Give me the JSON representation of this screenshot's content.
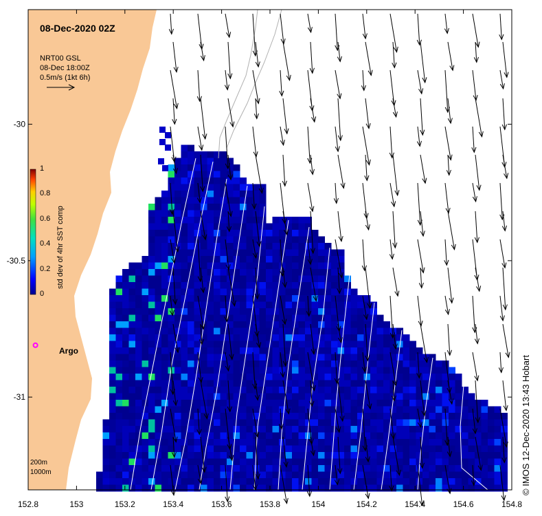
{
  "map": {
    "title": "08-Dec-2020 02Z",
    "lon_range": [
      152.8,
      154.8
    ],
    "lat_range": [
      -31.34,
      -29.58
    ],
    "x_ticks": [
      "152.8",
      "153",
      "153.2",
      "153.4",
      "153.6",
      "153.8",
      "154",
      "154.2",
      "154.4",
      "154.6",
      "154.8"
    ],
    "x_tick_values": [
      152.8,
      153.0,
      153.2,
      153.4,
      153.6,
      153.8,
      154.0,
      154.2,
      154.4,
      154.6,
      154.8
    ],
    "y_ticks": [
      "-30",
      "-30.5",
      "-31"
    ],
    "y_tick_values": [
      -30.0,
      -30.5,
      -31.0
    ]
  },
  "current_legend": {
    "line1": "NRT00 GSL",
    "line2": "08-Dec 18:00Z",
    "line3": "0.5m/s (1kt 6h)"
  },
  "colorbar": {
    "title": "std dev of 4hr SST comp",
    "ticks": [
      "1",
      "0.8",
      "0.6",
      "0.4",
      "0.2",
      "0"
    ],
    "range": [
      0,
      1
    ]
  },
  "argo": {
    "label": "Argo",
    "lon": 152.83,
    "lat": -30.81,
    "color": "#ff00ff"
  },
  "depth_legend": {
    "line1": "200m",
    "line2": "1000m"
  },
  "credit": "© IMOS 12-Dec-2020 13:43 Hobart",
  "colors": {
    "land": "#f9c896",
    "ocean_low": "#00008f",
    "contour": "#ffffff"
  }
}
